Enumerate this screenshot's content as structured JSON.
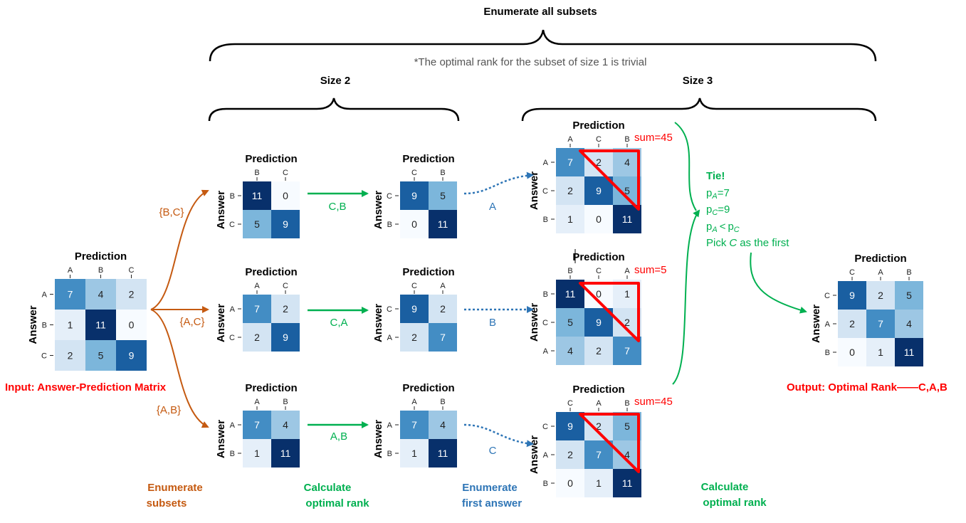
{
  "colors": {
    "orange": "#c55a11",
    "green": "#00b050",
    "blue": "#2e75b6",
    "red": "#ff0000",
    "dark": "#000000",
    "gray": "#404040"
  },
  "header": {
    "top_title": "Enumerate all subsets",
    "note": "*The optimal rank for the subset of size 1 is trivial",
    "size2": "Size 2",
    "size3": "Size 3"
  },
  "labels": {
    "prediction": "Prediction",
    "answer": "Answer",
    "input": "Input: Answer-Prediction Matrix",
    "output": "Output: Optimal Rank——C,A,B",
    "subset_bc": "{B,C}",
    "subset_ac": "{A,C}",
    "subset_ab": "{A,B}",
    "rank_cb": "C,B",
    "rank_ca": "C,A",
    "rank_ab": "A,B",
    "first_a": "A",
    "first_b": "B",
    "first_c": "C",
    "sum1": "sum=45",
    "sum2": "sum=5",
    "sum3": "sum=45"
  },
  "tie": {
    "title": "Tie!",
    "pa_eq": "=7",
    "pc_eq": "=9",
    "pa_lt": "<",
    "pick_prefix": "Pick",
    "pick_var": "C",
    "pick_suffix": "as the first",
    "p": "p",
    "sub_a": "A",
    "sub_c": "C"
  },
  "bottom": {
    "enumerate_subsets": [
      "Enumerate",
      "subsets"
    ],
    "calc_rank_1": [
      "Calculate",
      "optimal rank"
    ],
    "enumerate_first": [
      "Enumerate",
      "first answer"
    ],
    "calc_rank_2": [
      "Calculate",
      "optimal rank"
    ]
  },
  "matrices": [
    {
      "id": "input",
      "cols": [
        "A",
        "B",
        "C"
      ],
      "rows": [
        "A",
        "B",
        "C"
      ],
      "values": [
        [
          7,
          4,
          2
        ],
        [
          1,
          11,
          0
        ],
        [
          2,
          5,
          9
        ]
      ]
    },
    {
      "id": "bc",
      "cols": [
        "B",
        "C"
      ],
      "rows": [
        "B",
        "C"
      ],
      "values": [
        [
          11,
          0
        ],
        [
          5,
          9
        ]
      ]
    },
    {
      "id": "cb",
      "cols": [
        "C",
        "B"
      ],
      "rows": [
        "C",
        "B"
      ],
      "values": [
        [
          9,
          5
        ],
        [
          0,
          11
        ]
      ]
    },
    {
      "id": "ac",
      "cols": [
        "A",
        "C"
      ],
      "rows": [
        "A",
        "C"
      ],
      "values": [
        [
          7,
          2
        ],
        [
          2,
          9
        ]
      ]
    },
    {
      "id": "ca",
      "cols": [
        "C",
        "A"
      ],
      "rows": [
        "C",
        "A"
      ],
      "values": [
        [
          9,
          2
        ],
        [
          2,
          7
        ]
      ]
    },
    {
      "id": "ab",
      "cols": [
        "A",
        "B"
      ],
      "rows": [
        "A",
        "B"
      ],
      "values": [
        [
          7,
          4
        ],
        [
          1,
          11
        ]
      ]
    },
    {
      "id": "ab2",
      "cols": [
        "A",
        "B"
      ],
      "rows": [
        "A",
        "B"
      ],
      "values": [
        [
          7,
          4
        ],
        [
          1,
          11
        ]
      ]
    },
    {
      "id": "s3a",
      "cols": [
        "A",
        "C",
        "B"
      ],
      "rows": [
        "A",
        "C",
        "B"
      ],
      "values": [
        [
          7,
          2,
          4
        ],
        [
          2,
          9,
          5
        ],
        [
          1,
          0,
          11
        ]
      ]
    },
    {
      "id": "s3b",
      "cols": [
        "B",
        "C",
        "A"
      ],
      "rows": [
        "B",
        "C",
        "A"
      ],
      "values": [
        [
          11,
          0,
          1
        ],
        [
          5,
          9,
          2
        ],
        [
          4,
          2,
          7
        ]
      ]
    },
    {
      "id": "s3c",
      "cols": [
        "C",
        "A",
        "B"
      ],
      "rows": [
        "C",
        "A",
        "B"
      ],
      "values": [
        [
          9,
          2,
          5
        ],
        [
          2,
          7,
          4
        ],
        [
          0,
          1,
          11
        ]
      ]
    },
    {
      "id": "output",
      "cols": [
        "C",
        "A",
        "B"
      ],
      "rows": [
        "C",
        "A",
        "B"
      ],
      "values": [
        [
          9,
          2,
          5
        ],
        [
          2,
          7,
          4
        ],
        [
          0,
          1,
          11
        ]
      ]
    }
  ]
}
